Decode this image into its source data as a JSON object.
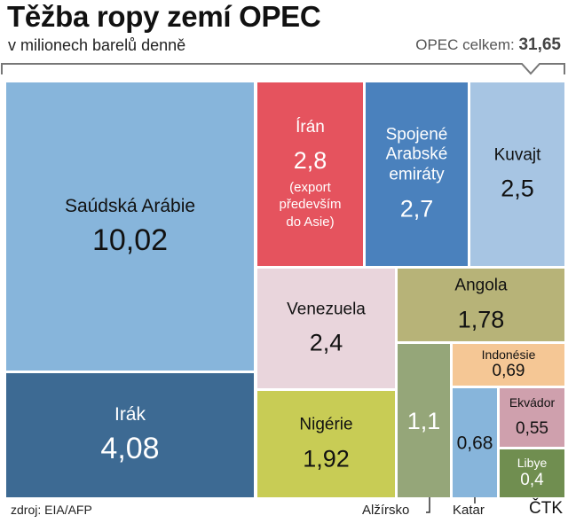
{
  "title": "Těžba ropy zemí OPEC",
  "subtitle": "v milionech barelů denně",
  "total": {
    "label": "OPEC celkem:",
    "value": "31,65"
  },
  "source": "zdroj: EIA/AFP",
  "credit": "ČTK",
  "chart_data": {
    "type": "treemap",
    "title": "Těžba ropy zemí OPEC",
    "unit": "v milionech barelů denně",
    "total": 31.65,
    "items": [
      {
        "name": "Saúdská Arábie",
        "value": 10.02,
        "display": "10,02",
        "color": "#87b5db"
      },
      {
        "name": "Irák",
        "value": 4.08,
        "display": "4,08",
        "color": "#3d6a93"
      },
      {
        "name": "Írán",
        "value": 2.8,
        "display": "2,8",
        "note": "(export především do Asie)",
        "color": "#e5535e"
      },
      {
        "name": "Spojené Arabské emiráty",
        "value": 2.7,
        "display": "2,7",
        "color": "#4a81bd"
      },
      {
        "name": "Kuvajt",
        "value": 2.5,
        "display": "2,5",
        "color": "#a7c5e3"
      },
      {
        "name": "Venezuela",
        "value": 2.4,
        "display": "2,4",
        "color": "#e9d5dc"
      },
      {
        "name": "Nigérie",
        "value": 1.92,
        "display": "1,92",
        "color": "#c8cc55"
      },
      {
        "name": "Angola",
        "value": 1.78,
        "display": "1,78",
        "color": "#b7b378"
      },
      {
        "name": "Alžírsko",
        "value": 1.1,
        "display": "1,1",
        "color": "#95a679"
      },
      {
        "name": "Indonésie",
        "value": 0.69,
        "display": "0,69",
        "color": "#f5c795"
      },
      {
        "name": "Katar",
        "value": 0.68,
        "display": "0,68",
        "color": "#87b5db"
      },
      {
        "name": "Ekvádor",
        "value": 0.55,
        "display": "0,55",
        "color": "#cfa0ad"
      },
      {
        "name": "Libye",
        "value": 0.4,
        "display": "0,4",
        "color": "#708e50"
      }
    ]
  }
}
